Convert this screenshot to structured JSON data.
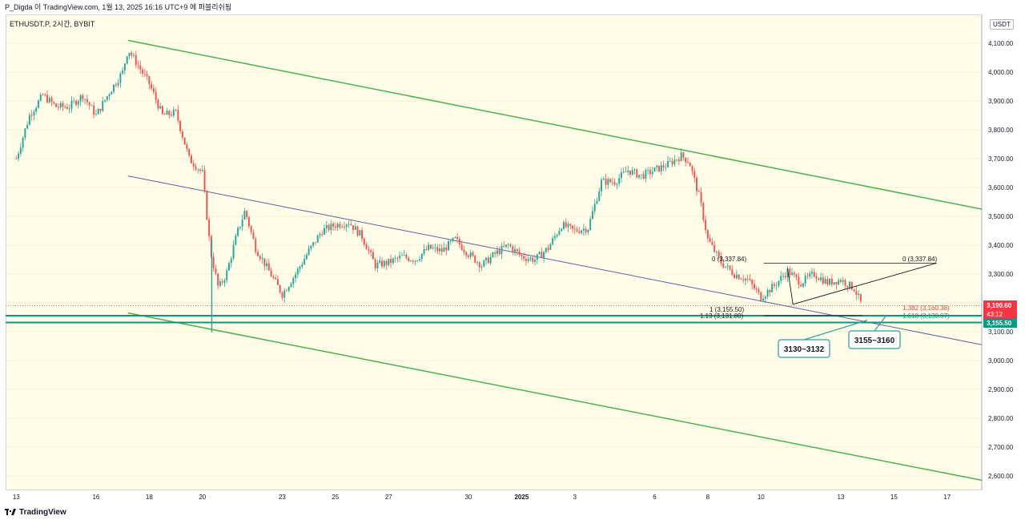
{
  "header": {
    "author_line": "P_Digda 이 TradingView.com, 1월 13, 2025 16:16 UTC+9 에 퍼블리쉬됨"
  },
  "symbol": {
    "label": "ETHUSDT.P, 2시간, BYBIT"
  },
  "price_axis": {
    "unit_label": "USDT",
    "current_price": "3,190.60",
    "countdown": "43:12",
    "level_badge": "3,155.50",
    "current_color": "#f23645",
    "level_color": "#089981"
  },
  "footer": {
    "brand": "TradingView",
    "logo_icon": "tradingview-logo-icon"
  },
  "colors": {
    "bull": "#26a69a",
    "bear": "#ef5350",
    "channel": "#4caf50",
    "midline": "#5c5fa8",
    "support": "#089981",
    "background": "#fffde8"
  },
  "annotations": {
    "fib_top_left": "0 (3,337.84)",
    "fib_top_right": "0 (3,337.84)",
    "fib_one": "1 (3,155.50)",
    "fib_113": "1.13 (3,131.80)",
    "fib_1382": "1.382 (3,160.38)",
    "fib_1618": "1.618 (3,130.07)",
    "callout_a": "3130~3132",
    "callout_b": "3155~3160"
  },
  "chart_data": {
    "type": "candlestick",
    "symbol": "ETHUSDT.P",
    "interval": "2시간",
    "exchange": "BYBIT",
    "ylim": [
      2550,
      4200
    ],
    "y_ticks": [
      2600,
      2700,
      2800,
      2900,
      3000,
      3100,
      3200,
      3300,
      3400,
      3500,
      3600,
      3700,
      3800,
      3900,
      4000,
      4100
    ],
    "y_tick_labels": [
      "2,600.00",
      "2,700.00",
      "2,800.00",
      "2,900.00",
      "3,000.00",
      "3,100.00",
      "3,200.00",
      "3,300.00",
      "3,400.00",
      "3,500.00",
      "3,600.00",
      "3,700.00",
      "3,800.00",
      "3,900.00",
      "4,000.00",
      "4,100.00"
    ],
    "x_tick_labels": [
      "13",
      "16",
      "18",
      "20",
      "23",
      "25",
      "27",
      "30",
      "2025",
      "3",
      "6",
      "8",
      "10",
      "13",
      "15",
      "17"
    ],
    "x_tick_days": [
      0,
      3,
      5,
      7,
      10,
      12,
      14,
      17,
      19,
      21,
      24,
      26,
      28,
      31,
      33,
      35
    ],
    "x_range_days": [
      -0.4,
      36.3
    ],
    "price_path": [
      [
        0,
        3700
      ],
      [
        0.5,
        3850
      ],
      [
        1,
        3920
      ],
      [
        1.5,
        3880
      ],
      [
        2,
        3880
      ],
      [
        2.5,
        3920
      ],
      [
        3,
        3850
      ],
      [
        3.5,
        3930
      ],
      [
        4,
        4000
      ],
      [
        4.2,
        4080
      ],
      [
        4.6,
        4020
      ],
      [
        5,
        3960
      ],
      [
        5.5,
        3850
      ],
      [
        6,
        3860
      ],
      [
        6.5,
        3700
      ],
      [
        7,
        3650
      ],
      [
        7.3,
        3380
      ],
      [
        7.6,
        3250
      ],
      [
        7.9,
        3300
      ],
      [
        8.3,
        3440
      ],
      [
        8.6,
        3520
      ],
      [
        9,
        3390
      ],
      [
        9.5,
        3310
      ],
      [
        10,
        3230
      ],
      [
        10.5,
        3300
      ],
      [
        11,
        3380
      ],
      [
        11.5,
        3450
      ],
      [
        12,
        3470
      ],
      [
        12.5,
        3480
      ],
      [
        13,
        3430
      ],
      [
        13.5,
        3330
      ],
      [
        14,
        3340
      ],
      [
        14.5,
        3360
      ],
      [
        15,
        3350
      ],
      [
        15.5,
        3390
      ],
      [
        16,
        3380
      ],
      [
        16.5,
        3420
      ],
      [
        17,
        3370
      ],
      [
        17.5,
        3330
      ],
      [
        18,
        3370
      ],
      [
        18.5,
        3400
      ],
      [
        19,
        3360
      ],
      [
        19.5,
        3350
      ],
      [
        20,
        3390
      ],
      [
        20.5,
        3470
      ],
      [
        21,
        3450
      ],
      [
        21.5,
        3460
      ],
      [
        22,
        3620
      ],
      [
        22.5,
        3620
      ],
      [
        23,
        3660
      ],
      [
        23.5,
        3640
      ],
      [
        24,
        3660
      ],
      [
        24.5,
        3680
      ],
      [
        25,
        3710
      ],
      [
        25.3,
        3690
      ],
      [
        25.7,
        3560
      ],
      [
        26,
        3420
      ],
      [
        26.5,
        3340
      ],
      [
        27,
        3300
      ],
      [
        27.5,
        3280
      ],
      [
        28,
        3220
      ],
      [
        28.5,
        3260
      ],
      [
        29,
        3310
      ],
      [
        29.5,
        3270
      ],
      [
        30,
        3300
      ],
      [
        30.5,
        3270
      ],
      [
        31,
        3280
      ],
      [
        31.5,
        3250
      ],
      [
        31.8,
        3190.6
      ]
    ],
    "channel_upper": [
      [
        4.2,
        4110
      ],
      [
        36.3,
        3525
      ]
    ],
    "channel_lower": [
      [
        4.2,
        3165
      ],
      [
        36.3,
        2585
      ]
    ],
    "midline": [
      [
        4.2,
        3640
      ],
      [
        36.3,
        3055
      ]
    ],
    "support_levels": [
      3155.5,
      3131.8
    ],
    "last_price": 3190.6
  }
}
